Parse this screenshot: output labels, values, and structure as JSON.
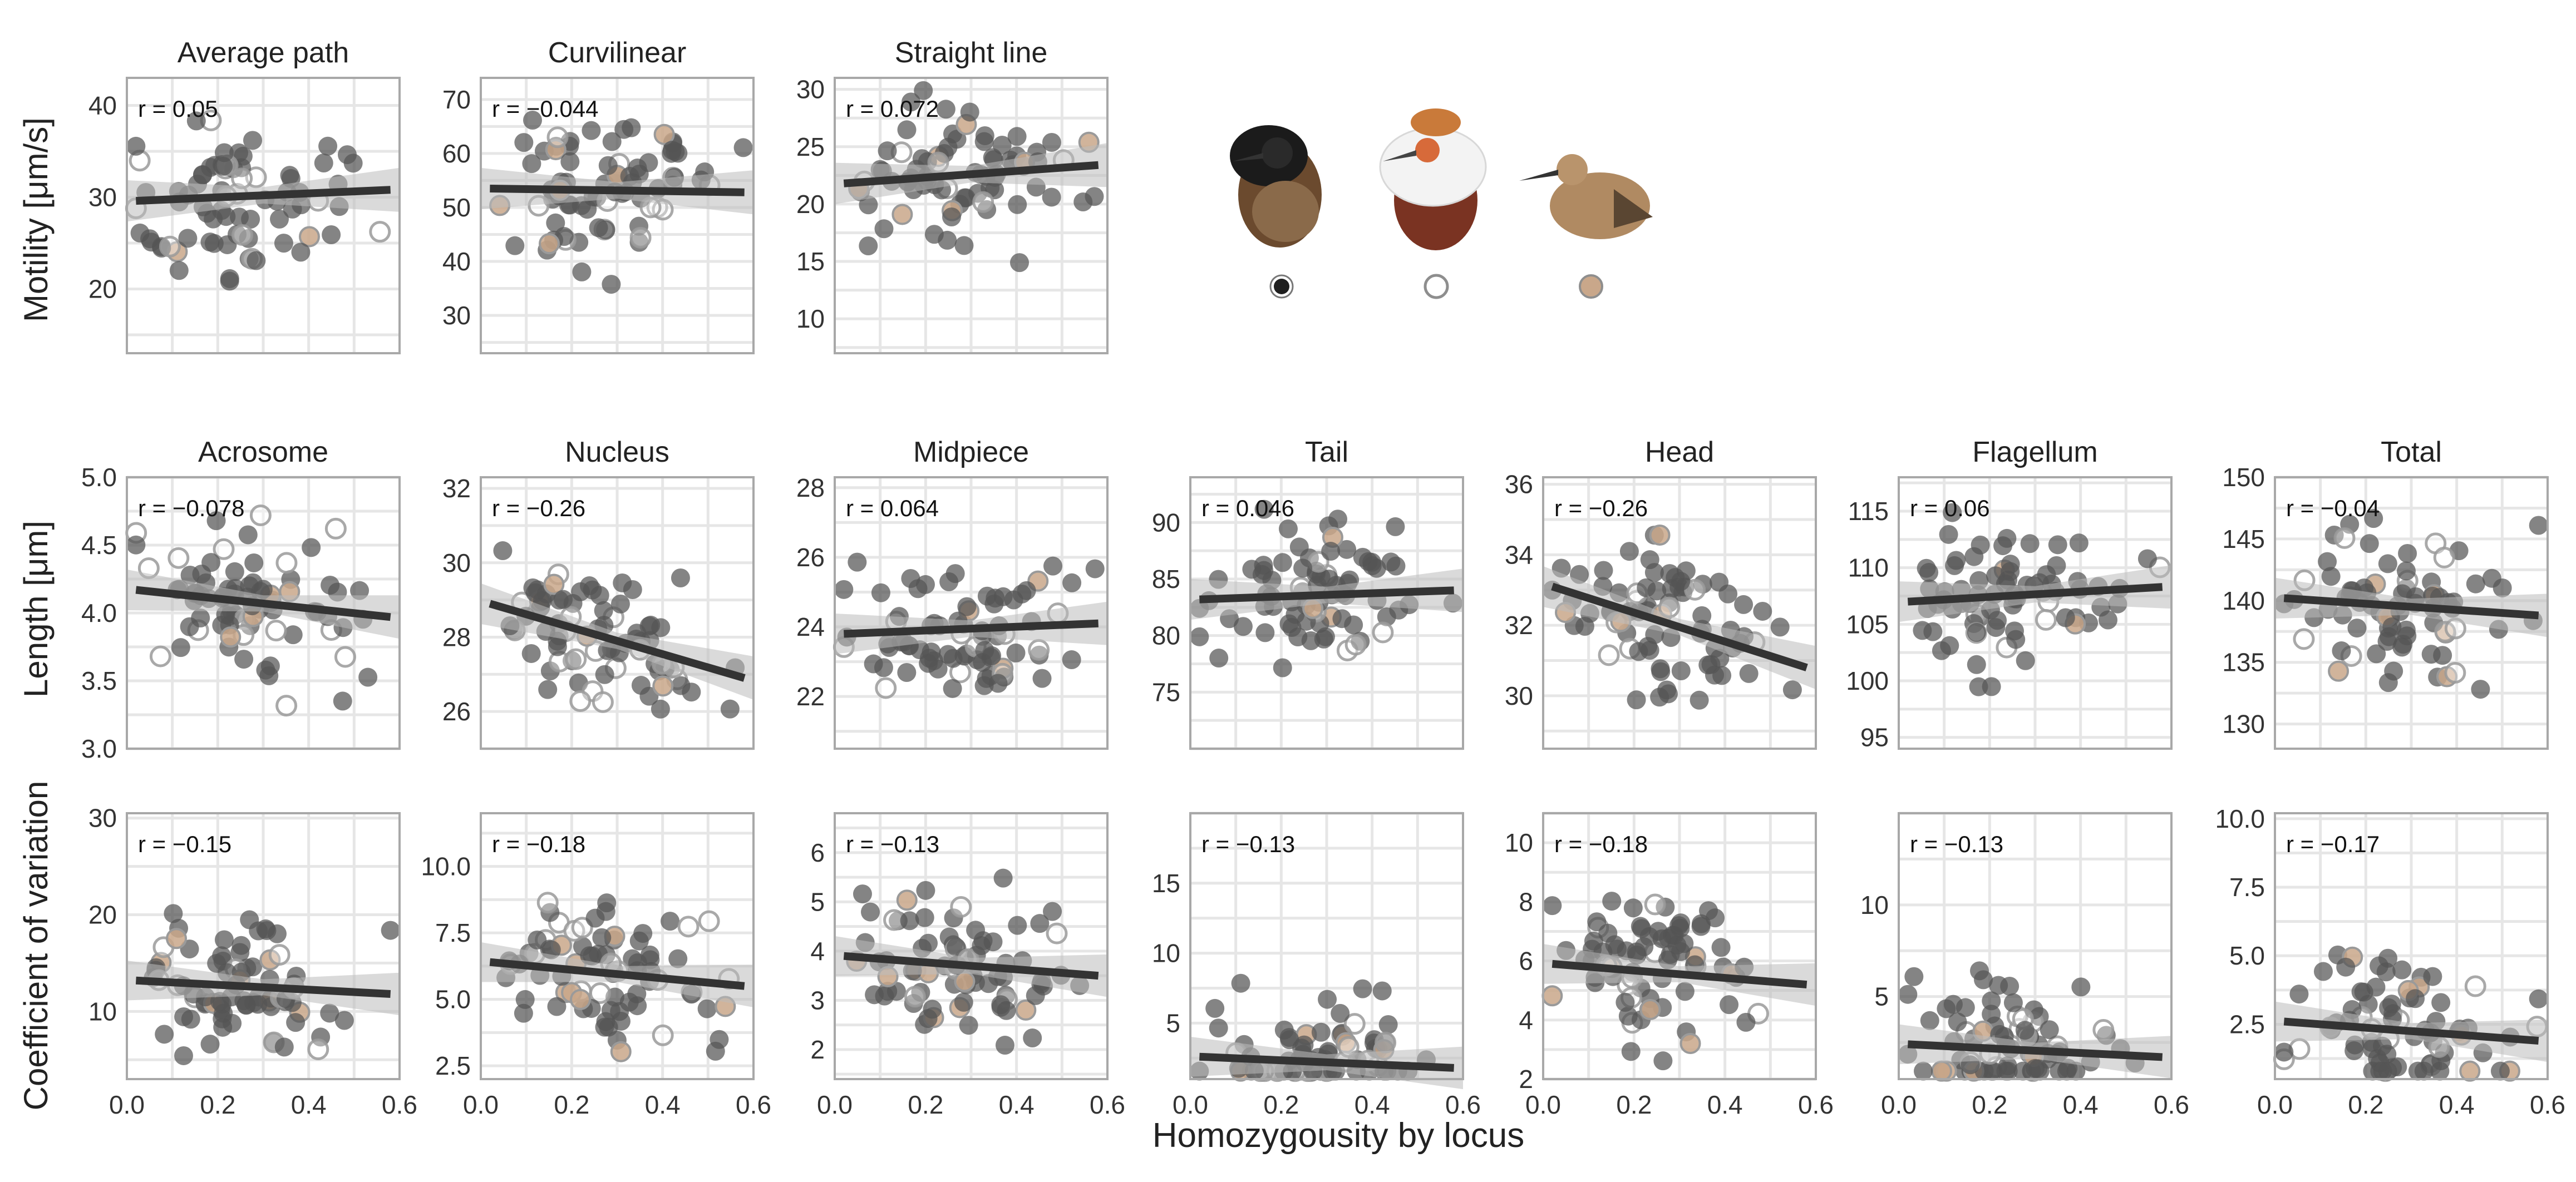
{
  "figure": {
    "x_axis_title": "Homozygousity by locus",
    "row_titles": [
      "Motility [μm/s]",
      "Length [μm]",
      "Coefficient of variation"
    ]
  },
  "legend": {
    "morphs": [
      {
        "icon": "dark-ruff-bird-icon",
        "color": "#1f1f1f",
        "fill": true
      },
      {
        "icon": "white-ruff-bird-icon",
        "color": "#9a9a9a",
        "fill": false
      },
      {
        "icon": "faeder-bird-icon",
        "color": "#c9a78a",
        "fill": true
      }
    ]
  },
  "colors": {
    "independent": "#555555",
    "satellite": "#9a9a9a",
    "faeder": "#c9a78a",
    "line": "#333333",
    "band": "#bcbcbc",
    "grid": "#e6e6e6",
    "frame": "#a8a8a8"
  },
  "chart_data": [
    {
      "type": "scatter",
      "title": "Average path",
      "r": "r = 0.05",
      "xlim": [
        0,
        0.6
      ],
      "ylim": [
        13,
        43
      ],
      "yticks": [
        20,
        30,
        40
      ],
      "fit": [
        29.6,
        30.8
      ],
      "x_ticks_shown": false,
      "y_ticks_labeled": true
    },
    {
      "type": "scatter",
      "title": "Curvilinear",
      "r": "r = −0.044",
      "xlim": [
        0,
        0.6
      ],
      "ylim": [
        23,
        74
      ],
      "yticks": [
        30,
        40,
        50,
        60,
        70
      ],
      "fit": [
        53.5,
        52.8
      ],
      "x_ticks_shown": false
    },
    {
      "type": "scatter",
      "title": "Straight line",
      "r": "r = 0.072",
      "xlim": [
        0,
        0.6
      ],
      "ylim": [
        7,
        31
      ],
      "yticks": [
        10,
        15,
        20,
        25,
        30
      ],
      "fit": [
        21.8,
        23.4
      ],
      "x_ticks_shown": false
    },
    {
      "type": "scatter",
      "title": "Acrosome",
      "r": "r = −0.078",
      "xlim": [
        0,
        0.6
      ],
      "ylim": [
        3.0,
        5.0
      ],
      "yticks": [
        "3.0",
        "3.5",
        "4.0",
        "4.5",
        "5.0"
      ],
      "fit": [
        4.17,
        3.97
      ],
      "x_ticks_shown": false
    },
    {
      "type": "scatter",
      "title": "Nucleus",
      "r": "r = −0.26",
      "xlim": [
        0,
        0.6
      ],
      "ylim": [
        25,
        32.3
      ],
      "yticks": [
        26,
        28,
        30,
        32
      ],
      "fit": [
        28.9,
        26.9
      ],
      "x_ticks_shown": false
    },
    {
      "type": "scatter",
      "title": "Midpiece",
      "r": "r = 0.064",
      "xlim": [
        0,
        0.6
      ],
      "ylim": [
        20.5,
        28.3
      ],
      "yticks": [
        22,
        24,
        26,
        28
      ],
      "fit": [
        23.8,
        24.1
      ],
      "x_ticks_shown": false
    },
    {
      "type": "scatter",
      "title": "Tail",
      "r": "r = 0.046",
      "xlim": [
        0,
        0.6
      ],
      "ylim": [
        70,
        94
      ],
      "yticks": [
        75,
        80,
        85,
        90
      ],
      "fit": [
        83.2,
        84.0
      ],
      "x_ticks_shown": false
    },
    {
      "type": "scatter",
      "title": "Head",
      "r": "r = −0.26",
      "xlim": [
        0,
        0.6
      ],
      "ylim": [
        28.5,
        36.2
      ],
      "yticks": [
        30,
        32,
        34,
        36
      ],
      "fit": [
        33.1,
        30.8
      ],
      "x_ticks_shown": false
    },
    {
      "type": "scatter",
      "title": "Flagellum",
      "r": "r = 0.06",
      "xlim": [
        0,
        0.6
      ],
      "ylim": [
        94,
        118
      ],
      "yticks": [
        95,
        100,
        105,
        110,
        115
      ],
      "fit": [
        107.0,
        108.3
      ],
      "x_ticks_shown": false
    },
    {
      "type": "scatter",
      "title": "Total",
      "r": "r = −0.04",
      "xlim": [
        0,
        0.6
      ],
      "ylim": [
        128,
        150
      ],
      "yticks": [
        130,
        135,
        140,
        145,
        150
      ],
      "fit": [
        140.2,
        138.8
      ],
      "x_ticks_shown": false
    },
    {
      "type": "scatter",
      "title": "",
      "r": "r = −0.15",
      "xlim": [
        0,
        0.6
      ],
      "ylim": [
        3,
        30.5
      ],
      "yticks": [
        10,
        20,
        30
      ],
      "fit": [
        13.2,
        11.8
      ],
      "x_ticks_shown": true,
      "xticks": [
        "0.0",
        "0.2",
        "0.4",
        "0.6"
      ]
    },
    {
      "type": "scatter",
      "title": "",
      "r": "r = −0.18",
      "xlim": [
        0,
        0.6
      ],
      "ylim": [
        2,
        12
      ],
      "yticks": [
        "2.5",
        "5.0",
        "7.5",
        "10.0"
      ],
      "fit": [
        6.4,
        5.5
      ],
      "x_ticks_shown": true,
      "xticks": [
        "0.0",
        "0.2",
        "0.4",
        "0.6"
      ]
    },
    {
      "type": "scatter",
      "title": "",
      "r": "r = −0.13",
      "xlim": [
        0,
        0.6
      ],
      "ylim": [
        1.4,
        6.8
      ],
      "yticks": [
        2,
        3,
        4,
        5,
        6
      ],
      "fit": [
        3.9,
        3.5
      ],
      "x_ticks_shown": true,
      "xticks": [
        "0.0",
        "0.2",
        "0.4",
        "0.6"
      ]
    },
    {
      "type": "scatter",
      "title": "",
      "r": "r = −0.13",
      "xlim": [
        0,
        0.6
      ],
      "ylim": [
        1,
        20
      ],
      "yticks": [
        5,
        10,
        15
      ],
      "fit": [
        2.6,
        1.8
      ],
      "x_ticks_shown": true,
      "xticks": [
        "0.0",
        "0.2",
        "0.4",
        "0.6"
      ]
    },
    {
      "type": "scatter",
      "title": "",
      "r": "r = −0.18",
      "xlim": [
        0,
        0.6
      ],
      "ylim": [
        2,
        11
      ],
      "yticks": [
        2,
        4,
        6,
        8,
        10
      ],
      "fit": [
        5.9,
        5.2
      ],
      "x_ticks_shown": true,
      "xticks": [
        "0.0",
        "0.2",
        "0.4",
        "0.6"
      ]
    },
    {
      "type": "scatter",
      "title": "",
      "r": "r = −0.13",
      "xlim": [
        0,
        0.6
      ],
      "ylim": [
        0.5,
        15
      ],
      "yticks": [
        5,
        10
      ],
      "fit": [
        2.4,
        1.7
      ],
      "x_ticks_shown": true,
      "xticks": [
        "0.0",
        "0.2",
        "0.4",
        "0.6"
      ]
    },
    {
      "type": "scatter",
      "title": "",
      "r": "r = −0.17",
      "xlim": [
        0,
        0.6
      ],
      "ylim": [
        0.5,
        10.2
      ],
      "yticks": [
        "2.5",
        "5.0",
        "7.5",
        "10.0"
      ],
      "fit": [
        2.6,
        1.9
      ],
      "x_ticks_shown": true,
      "xticks": [
        "0.0",
        "0.2",
        "0.4",
        "0.6"
      ]
    }
  ]
}
